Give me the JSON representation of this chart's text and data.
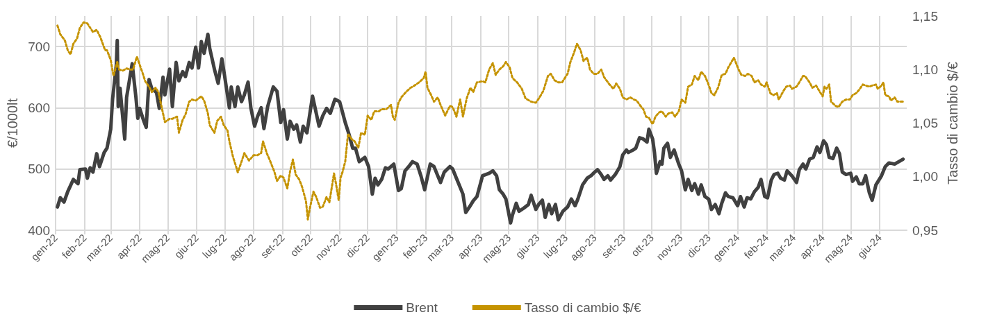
{
  "chart_data": {
    "type": "line",
    "ylabel": "€/1000lt",
    "y2label": "Tasso di cambio $/€",
    "xlim": [
      "2022-01-01",
      "2024-06-30"
    ],
    "xticks": [
      {
        "value": "2022-01-01",
        "label": "gen-22"
      },
      {
        "value": "2022-02-01",
        "label": "feb-22"
      },
      {
        "value": "2022-03-01",
        "label": "mar-22"
      },
      {
        "value": "2022-04-01",
        "label": "apr-22"
      },
      {
        "value": "2022-05-01",
        "label": "mag-22"
      },
      {
        "value": "2022-06-01",
        "label": "giu-22"
      },
      {
        "value": "2022-07-01",
        "label": "lug-22"
      },
      {
        "value": "2022-08-01",
        "label": "ago-22"
      },
      {
        "value": "2022-09-01",
        "label": "set-22"
      },
      {
        "value": "2022-10-01",
        "label": "ott-22"
      },
      {
        "value": "2022-11-01",
        "label": "nov-22"
      },
      {
        "value": "2022-12-01",
        "label": "dic-22"
      },
      {
        "value": "2023-01-01",
        "label": "gen-23"
      },
      {
        "value": "2023-02-01",
        "label": "feb-23"
      },
      {
        "value": "2023-03-01",
        "label": "mar-23"
      },
      {
        "value": "2023-04-01",
        "label": "apr-23"
      },
      {
        "value": "2023-05-01",
        "label": "mag-23"
      },
      {
        "value": "2023-06-01",
        "label": "giu-23"
      },
      {
        "value": "2023-07-01",
        "label": "lug-23"
      },
      {
        "value": "2023-08-01",
        "label": "ago-23"
      },
      {
        "value": "2023-09-01",
        "label": "set-23"
      },
      {
        "value": "2023-10-01",
        "label": "ott-23"
      },
      {
        "value": "2023-11-01",
        "label": "nov-23"
      },
      {
        "value": "2023-12-01",
        "label": "dic-23"
      },
      {
        "value": "2024-01-01",
        "label": "gen-24"
      },
      {
        "value": "2024-02-01",
        "label": "feb-24"
      },
      {
        "value": "2024-03-01",
        "label": "mar-24"
      },
      {
        "value": "2024-04-01",
        "label": "apr-24"
      },
      {
        "value": "2024-05-01",
        "label": "mag-24"
      },
      {
        "value": "2024-06-01",
        "label": "giu-24"
      }
    ],
    "ylim": [
      400,
      750
    ],
    "yticks": [
      400,
      500,
      600,
      700
    ],
    "y2lim": [
      0.95,
      1.15
    ],
    "y2ticks": [
      {
        "value": 0.95,
        "label": "0,95"
      },
      {
        "value": 1.0,
        "label": "1,00"
      },
      {
        "value": 1.05,
        "label": "1,05"
      },
      {
        "value": 1.1,
        "label": "1,10"
      },
      {
        "value": 1.15,
        "label": "1,15"
      }
    ],
    "grid": true,
    "legend": "bottom",
    "marker": "none",
    "series": [
      {
        "name": "Brent",
        "color": "#404040",
        "line_style": "solid",
        "x": [
          "2022-01-03",
          "2022-01-06",
          "2022-01-10",
          "2022-01-14",
          "2022-01-20",
          "2022-01-25",
          "2022-01-27",
          "2022-02-02",
          "2022-02-04",
          "2022-02-07",
          "2022-02-10",
          "2022-02-14",
          "2022-02-17",
          "2022-02-22",
          "2022-02-25",
          "2022-03-01",
          "2022-03-03",
          "2022-03-07",
          "2022-03-08",
          "2022-03-09",
          "2022-03-11",
          "2022-03-16",
          "2022-03-18",
          "2022-03-24",
          "2022-03-28",
          "2022-03-30",
          "2022-04-01",
          "2022-04-05",
          "2022-04-08",
          "2022-04-11",
          "2022-04-14",
          "2022-04-19",
          "2022-04-22",
          "2022-04-26",
          "2022-04-28",
          "2022-05-03",
          "2022-05-06",
          "2022-05-10",
          "2022-05-13",
          "2022-05-17",
          "2022-05-20",
          "2022-05-24",
          "2022-05-27",
          "2022-05-31",
          "2022-06-03",
          "2022-06-06",
          "2022-06-09",
          "2022-06-13",
          "2022-06-15",
          "2022-06-20",
          "2022-06-24",
          "2022-06-28",
          "2022-07-01",
          "2022-07-06",
          "2022-07-08",
          "2022-07-12",
          "2022-07-15",
          "2022-07-19",
          "2022-07-22",
          "2022-07-26",
          "2022-07-29",
          "2022-08-02",
          "2022-08-05",
          "2022-08-09",
          "2022-08-12",
          "2022-08-16",
          "2022-08-22",
          "2022-08-26",
          "2022-08-30",
          "2022-09-02",
          "2022-09-06",
          "2022-09-09",
          "2022-09-13",
          "2022-09-16",
          "2022-09-20",
          "2022-09-23",
          "2022-09-27",
          "2022-10-03",
          "2022-10-07",
          "2022-10-10",
          "2022-10-14",
          "2022-10-18",
          "2022-10-22",
          "2022-10-27",
          "2022-11-01",
          "2022-11-03",
          "2022-11-07",
          "2022-11-11",
          "2022-11-15",
          "2022-11-18",
          "2022-11-22",
          "2022-11-28",
          "2022-12-02",
          "2022-12-06",
          "2022-12-09",
          "2022-12-12",
          "2022-12-16",
          "2022-12-20",
          "2022-12-23",
          "2022-12-29",
          "2023-01-03",
          "2023-01-06",
          "2023-01-10",
          "2023-01-14",
          "2023-01-18",
          "2023-01-23",
          "2023-01-27",
          "2023-01-31",
          "2023-02-06",
          "2023-02-10",
          "2023-02-14",
          "2023-02-17",
          "2023-02-21",
          "2023-02-27",
          "2023-03-02",
          "2023-03-06",
          "2023-03-13",
          "2023-03-16",
          "2023-03-20",
          "2023-03-24",
          "2023-03-28",
          "2023-04-03",
          "2023-04-10",
          "2023-04-14",
          "2023-04-18",
          "2023-04-21",
          "2023-04-25",
          "2023-04-28",
          "2023-05-03",
          "2023-05-05",
          "2023-05-09",
          "2023-05-12",
          "2023-05-17",
          "2023-05-22",
          "2023-05-25",
          "2023-05-30",
          "2023-06-02",
          "2023-06-06",
          "2023-06-09",
          "2023-06-13",
          "2023-06-16",
          "2023-06-20",
          "2023-06-23",
          "2023-06-28",
          "2023-07-03",
          "2023-07-07",
          "2023-07-11",
          "2023-07-14",
          "2023-07-19",
          "2023-07-24",
          "2023-07-28",
          "2023-08-01",
          "2023-08-04",
          "2023-08-08",
          "2023-08-11",
          "2023-08-15",
          "2023-08-18",
          "2023-08-23",
          "2023-08-28",
          "2023-08-31",
          "2023-09-04",
          "2023-09-06",
          "2023-09-11",
          "2023-09-14",
          "2023-09-18",
          "2023-09-22",
          "2023-09-26",
          "2023-09-28",
          "2023-10-02",
          "2023-10-04",
          "2023-10-06",
          "2023-10-10",
          "2023-10-12",
          "2023-10-14",
          "2023-10-18",
          "2023-10-21",
          "2023-10-25",
          "2023-10-30",
          "2023-11-02",
          "2023-11-06",
          "2023-11-09",
          "2023-11-13",
          "2023-11-16",
          "2023-11-20",
          "2023-11-23",
          "2023-11-27",
          "2023-12-01",
          "2023-12-04",
          "2023-12-08",
          "2023-12-12",
          "2023-12-15",
          "2023-12-19",
          "2023-12-22",
          "2023-12-27",
          "2024-01-01",
          "2024-01-04",
          "2024-01-08",
          "2024-01-11",
          "2024-01-15",
          "2024-01-19",
          "2024-01-23",
          "2024-01-26",
          "2024-01-30",
          "2024-02-02",
          "2024-02-06",
          "2024-02-09",
          "2024-02-13",
          "2024-02-16",
          "2024-02-20",
          "2024-02-23",
          "2024-02-28",
          "2024-03-04",
          "2024-03-07",
          "2024-03-11",
          "2024-03-14",
          "2024-03-18",
          "2024-03-22",
          "2024-03-26",
          "2024-03-29",
          "2024-04-02",
          "2024-04-05",
          "2024-04-08",
          "2024-04-12",
          "2024-04-16",
          "2024-04-19",
          "2024-04-22",
          "2024-04-26",
          "2024-05-01",
          "2024-05-03",
          "2024-05-07",
          "2024-05-10",
          "2024-05-14",
          "2024-05-17",
          "2024-05-21",
          "2024-05-24",
          "2024-05-28",
          "2024-06-03",
          "2024-06-07",
          "2024-06-11",
          "2024-06-17",
          "2024-06-26"
        ],
        "values": [
          438,
          453,
          446,
          463,
          483,
          476,
          499,
          500,
          485,
          502,
          495,
          525,
          504,
          527,
          534,
          565,
          614,
          670,
          710,
          602,
          632,
          549,
          617,
          672,
          617,
          583,
          599,
          580,
          568,
          646,
          631,
          625,
          599,
          650,
          621,
          663,
          602,
          674,
          644,
          659,
          651,
          674,
          665,
          699,
          665,
          708,
          689,
          720,
          697,
          663,
          640,
          680,
          651,
          600,
          634,
          602,
          634,
          610,
          621,
          642,
          600,
          570,
          585,
          600,
          566,
          602,
          634,
          627,
          576,
          597,
          549,
          578,
          565,
          572,
          544,
          570,
          559,
          619,
          591,
          570,
          587,
          599,
          591,
          614,
          610,
          599,
          576,
          557,
          534,
          534,
          512,
          519,
          504,
          459,
          485,
          474,
          483,
          502,
          500,
          508,
          465,
          468,
          497,
          504,
          512,
          508,
          489,
          466,
          508,
          504,
          489,
          478,
          495,
          504,
          500,
          485,
          459,
          429,
          438,
          448,
          455,
          489,
          493,
          497,
          489,
          466,
          459,
          451,
          412,
          425,
          444,
          431,
          436,
          442,
          457,
          434,
          442,
          449,
          421,
          442,
          427,
          442,
          417,
          431,
          438,
          451,
          440,
          451,
          474,
          485,
          489,
          495,
          499,
          491,
          483,
          489,
          482,
          491,
          504,
          523,
          531,
          527,
          531,
          534,
          551,
          549,
          544,
          565,
          549,
          527,
          493,
          512,
          508,
          534,
          542,
          519,
          531,
          508,
          497,
          466,
          483,
          465,
          476,
          459,
          474,
          455,
          451,
          434,
          442,
          427,
          444,
          461,
          455,
          453,
          440,
          455,
          438,
          453,
          451,
          463,
          470,
          483,
          455,
          453,
          482,
          491,
          493,
          485,
          482,
          497,
          489,
          478,
          499,
          508,
          500,
          516,
          519,
          536,
          527,
          546,
          540,
          519,
          517,
          534,
          525,
          495,
          491,
          493,
          480,
          487,
          476,
          476,
          489,
          461,
          449,
          474,
          489,
          504,
          510,
          508,
          516
        ]
      },
      {
        "name": "Tasso di cambio $/€",
        "color": "#c59300",
        "line_style": "dotted",
        "axis": "y2",
        "x": [
          "2022-01-03",
          "2022-01-06",
          "2022-01-11",
          "2022-01-14",
          "2022-01-17",
          "2022-01-20",
          "2022-01-24",
          "2022-01-27",
          "2022-01-31",
          "2022-02-04",
          "2022-02-10",
          "2022-02-14",
          "2022-02-18",
          "2022-02-23",
          "2022-02-25",
          "2022-03-01",
          "2022-03-04",
          "2022-03-08",
          "2022-03-10",
          "2022-03-14",
          "2022-03-18",
          "2022-03-22",
          "2022-03-25",
          "2022-03-29",
          "2022-03-31",
          "2022-04-04",
          "2022-04-07",
          "2022-04-11",
          "2022-04-14",
          "2022-04-18",
          "2022-04-21",
          "2022-04-25",
          "2022-04-28",
          "2022-05-03",
          "2022-05-06",
          "2022-05-11",
          "2022-05-13",
          "2022-05-17",
          "2022-05-20",
          "2022-05-24",
          "2022-05-27",
          "2022-05-31",
          "2022-06-06",
          "2022-06-09",
          "2022-06-13",
          "2022-06-15",
          "2022-06-20",
          "2022-06-23",
          "2022-06-27",
          "2022-06-30",
          "2022-07-04",
          "2022-07-06",
          "2022-07-10",
          "2022-07-13",
          "2022-07-15",
          "2022-07-19",
          "2022-07-22",
          "2022-07-27",
          "2022-08-01",
          "2022-08-05",
          "2022-08-09",
          "2022-08-11",
          "2022-08-15",
          "2022-08-18",
          "2022-08-23",
          "2022-08-26",
          "2022-08-30",
          "2022-09-02",
          "2022-09-06",
          "2022-09-09",
          "2022-09-12",
          "2022-09-15",
          "2022-09-19",
          "2022-09-22",
          "2022-09-26",
          "2022-09-28",
          "2022-09-30",
          "2022-10-04",
          "2022-10-07",
          "2022-10-11",
          "2022-10-14",
          "2022-10-18",
          "2022-10-21",
          "2022-10-24",
          "2022-10-26",
          "2022-10-28",
          "2022-10-31",
          "2022-11-02",
          "2022-11-04",
          "2022-11-07",
          "2022-11-10",
          "2022-11-14",
          "2022-11-17",
          "2022-11-21",
          "2022-11-24",
          "2022-11-28",
          "2022-12-01",
          "2022-12-05",
          "2022-12-08",
          "2022-12-13",
          "2022-12-16",
          "2022-12-21",
          "2022-12-26",
          "2022-12-28",
          "2022-12-30",
          "2023-01-03",
          "2023-01-06",
          "2023-01-11",
          "2023-01-16",
          "2023-01-20",
          "2023-01-25",
          "2023-01-30",
          "2023-02-01",
          "2023-02-03",
          "2023-02-07",
          "2023-02-10",
          "2023-02-14",
          "2023-02-17",
          "2023-02-22",
          "2023-02-27",
          "2023-03-02",
          "2023-03-06",
          "2023-03-10",
          "2023-03-13",
          "2023-03-17",
          "2023-03-21",
          "2023-03-24",
          "2023-03-28",
          "2023-04-03",
          "2023-04-06",
          "2023-04-10",
          "2023-04-14",
          "2023-04-17",
          "2023-04-21",
          "2023-04-25",
          "2023-04-28",
          "2023-05-02",
          "2023-05-05",
          "2023-05-10",
          "2023-05-15",
          "2023-05-19",
          "2023-05-25",
          "2023-05-30",
          "2023-06-03",
          "2023-06-07",
          "2023-06-12",
          "2023-06-15",
          "2023-06-19",
          "2023-06-23",
          "2023-06-27",
          "2023-07-03",
          "2023-07-06",
          "2023-07-10",
          "2023-07-13",
          "2023-07-17",
          "2023-07-20",
          "2023-07-24",
          "2023-07-27",
          "2023-07-31",
          "2023-08-04",
          "2023-08-08",
          "2023-08-11",
          "2023-08-16",
          "2023-08-21",
          "2023-08-24",
          "2023-08-28",
          "2023-08-31",
          "2023-09-04",
          "2023-09-08",
          "2023-09-12",
          "2023-09-15",
          "2023-09-19",
          "2023-09-22",
          "2023-09-25",
          "2023-09-28",
          "2023-10-02",
          "2023-10-05",
          "2023-10-09",
          "2023-10-12",
          "2023-10-16",
          "2023-10-19",
          "2023-10-23",
          "2023-10-26",
          "2023-10-30",
          "2023-11-02",
          "2023-11-06",
          "2023-11-09",
          "2023-11-13",
          "2023-11-16",
          "2023-11-20",
          "2023-11-23",
          "2023-11-27",
          "2023-11-30",
          "2023-12-04",
          "2023-12-07",
          "2023-12-11",
          "2023-12-13",
          "2023-12-15",
          "2023-12-19",
          "2023-12-22",
          "2023-12-26",
          "2023-12-28",
          "2024-01-02",
          "2024-01-05",
          "2024-01-09",
          "2024-01-12",
          "2024-01-16",
          "2024-01-19",
          "2024-01-23",
          "2024-01-26",
          "2024-01-30",
          "2024-02-01",
          "2024-02-05",
          "2024-02-08",
          "2024-02-12",
          "2024-02-14",
          "2024-02-19",
          "2024-02-22",
          "2024-02-26",
          "2024-02-28",
          "2024-03-04",
          "2024-03-07",
          "2024-03-11",
          "2024-03-13",
          "2024-03-18",
          "2024-03-21",
          "2024-03-25",
          "2024-03-27",
          "2024-04-01",
          "2024-04-03",
          "2024-04-05",
          "2024-04-08",
          "2024-04-10",
          "2024-04-15",
          "2024-04-18",
          "2024-04-22",
          "2024-04-26",
          "2024-04-30",
          "2024-05-03",
          "2024-05-07",
          "2024-05-10",
          "2024-05-14",
          "2024-05-17",
          "2024-05-21",
          "2024-05-24",
          "2024-05-28",
          "2024-05-30",
          "2024-06-03",
          "2024-06-05",
          "2024-06-07",
          "2024-06-11",
          "2024-06-13",
          "2024-06-17",
          "2024-06-20",
          "2024-06-26"
        ],
        "values": [
          1.141,
          1.133,
          1.127,
          1.118,
          1.114,
          1.124,
          1.129,
          1.139,
          1.144,
          1.143,
          1.135,
          1.137,
          1.13,
          1.118,
          1.118,
          1.109,
          1.094,
          1.107,
          1.1,
          1.099,
          1.101,
          1.1,
          1.1,
          1.112,
          1.107,
          1.097,
          1.089,
          1.084,
          1.079,
          1.083,
          1.079,
          1.063,
          1.051,
          1.054,
          1.054,
          1.056,
          1.041,
          1.053,
          1.058,
          1.07,
          1.072,
          1.071,
          1.075,
          1.071,
          1.059,
          1.048,
          1.041,
          1.052,
          1.056,
          1.048,
          1.043,
          1.033,
          1.018,
          1.01,
          1.004,
          1.014,
          1.022,
          1.015,
          1.02,
          1.02,
          1.022,
          1.033,
          1.022,
          1.016,
          1.005,
          0.996,
          1.001,
          0.999,
          0.989,
          1.005,
          1.016,
          1.002,
          0.997,
          0.99,
          0.977,
          0.96,
          0.97,
          0.986,
          0.981,
          0.971,
          0.972,
          0.981,
          0.976,
          0.992,
          1.003,
          0.994,
          0.978,
          0.999,
          1.004,
          1.014,
          1.04,
          1.035,
          1.033,
          1.027,
          1.041,
          1.039,
          1.057,
          1.053,
          1.061,
          1.061,
          1.063,
          1.063,
          1.067,
          1.056,
          1.053,
          1.069,
          1.074,
          1.079,
          1.083,
          1.085,
          1.088,
          1.092,
          1.098,
          1.083,
          1.076,
          1.07,
          1.074,
          1.067,
          1.057,
          1.066,
          1.065,
          1.056,
          1.072,
          1.056,
          1.073,
          1.083,
          1.079,
          1.088,
          1.089,
          1.088,
          1.1,
          1.106,
          1.095,
          1.1,
          1.103,
          1.107,
          1.102,
          1.092,
          1.088,
          1.082,
          1.073,
          1.07,
          1.069,
          1.074,
          1.08,
          1.094,
          1.096,
          1.09,
          1.088,
          1.088,
          1.096,
          1.107,
          1.116,
          1.124,
          1.118,
          1.108,
          1.111,
          1.1,
          1.096,
          1.096,
          1.1,
          1.093,
          1.087,
          1.082,
          1.087,
          1.082,
          1.074,
          1.072,
          1.074,
          1.072,
          1.071,
          1.066,
          1.063,
          1.056,
          1.055,
          1.049,
          1.056,
          1.06,
          1.061,
          1.056,
          1.059,
          1.06,
          1.056,
          1.061,
          1.072,
          1.069,
          1.084,
          1.086,
          1.094,
          1.09,
          1.098,
          1.094,
          1.088,
          1.078,
          1.076,
          1.083,
          1.089,
          1.095,
          1.096,
          1.102,
          1.108,
          1.111,
          1.1,
          1.095,
          1.094,
          1.096,
          1.094,
          1.088,
          1.09,
          1.086,
          1.084,
          1.088,
          1.078,
          1.076,
          1.078,
          1.072,
          1.08,
          1.084,
          1.085,
          1.082,
          1.084,
          1.088,
          1.094,
          1.094,
          1.088,
          1.083,
          1.085,
          1.082,
          1.075,
          1.084,
          1.082,
          1.086,
          1.07,
          1.066,
          1.065,
          1.07,
          1.072,
          1.072,
          1.076,
          1.078,
          1.081,
          1.086,
          1.085,
          1.084,
          1.085,
          1.086,
          1.082,
          1.085,
          1.088,
          1.076,
          1.075,
          1.071,
          1.074,
          1.07,
          1.07
        ]
      }
    ]
  }
}
